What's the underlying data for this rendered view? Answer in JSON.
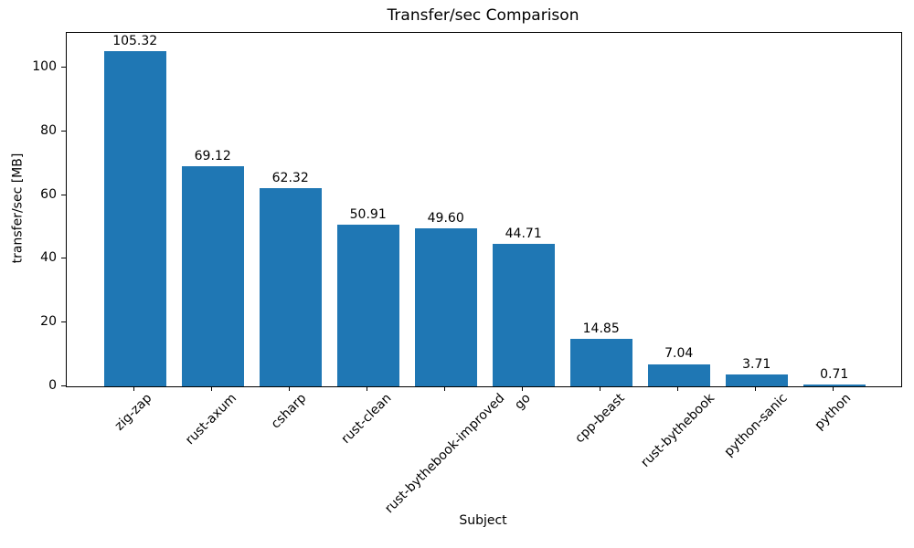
{
  "chart_data": {
    "type": "bar",
    "title": "Transfer/sec Comparison",
    "xlabel": "Subject",
    "ylabel": "transfer/sec [MB]",
    "categories": [
      "zig-zap",
      "rust-axum",
      "csharp",
      "rust-clean",
      "rust-bythebook-improved",
      "go",
      "cpp-beast",
      "rust-bythebook",
      "python-sanic",
      "python"
    ],
    "values": [
      105.32,
      69.12,
      62.32,
      50.91,
      49.6,
      44.71,
      14.85,
      7.04,
      3.71,
      0.71
    ],
    "value_labels": [
      "105.32",
      "69.12",
      "62.32",
      "50.91",
      "49.60",
      "44.71",
      "14.85",
      "7.04",
      "3.71",
      "0.71"
    ],
    "yticks": [
      0,
      20,
      40,
      60,
      80,
      100
    ],
    "ylim": [
      0,
      111.2
    ],
    "bar_color": "#1f77b4",
    "background_color": "#ffffff",
    "text_color": "#000000",
    "grid": false,
    "legend": null
  }
}
